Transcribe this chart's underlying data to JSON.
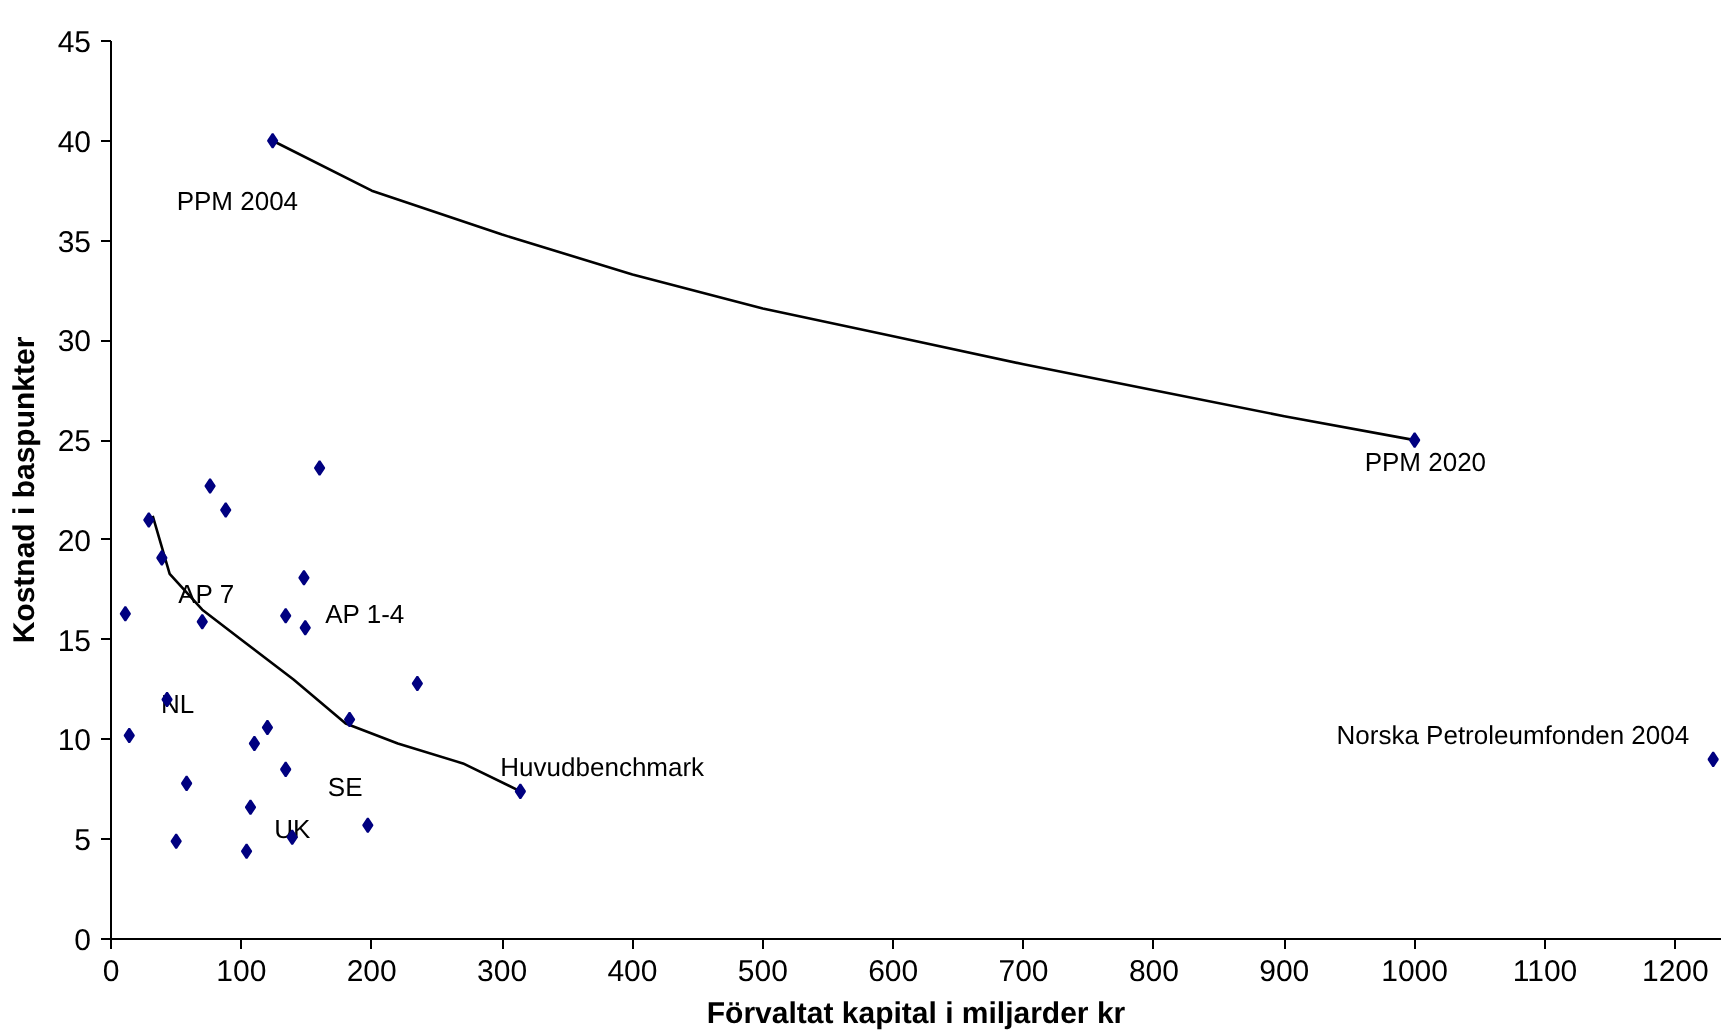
{
  "chart_data": {
    "type": "scatter",
    "xlabel": "Förvaltat kapital i miljarder kr",
    "ylabel": "Kostnad i baspunkter",
    "xlim": [
      0,
      1235
    ],
    "ylim": [
      0,
      45
    ],
    "xticks": [
      0,
      100,
      200,
      300,
      400,
      500,
      600,
      700,
      800,
      900,
      1000,
      1100,
      1200
    ],
    "yticks": [
      0,
      5,
      10,
      15,
      20,
      25,
      30,
      35,
      40,
      45
    ],
    "grid": false,
    "series": [
      {
        "type": "line",
        "color": "#000000",
        "marker": "none",
        "line_style": "solid",
        "x": [
          124,
          200,
          300,
          400,
          500,
          600,
          700,
          800,
          900,
          1000
        ],
        "values": [
          40,
          37.5,
          35.3,
          33.3,
          31.6,
          30.2,
          28.8,
          27.5,
          26.2,
          25
        ]
      },
      {
        "type": "line",
        "color": "#000000",
        "marker": "none",
        "line_style": "solid",
        "x": [
          32,
          45,
          70,
          100,
          140,
          180,
          220,
          270,
          314
        ],
        "values": [
          21.2,
          18.3,
          16.5,
          15,
          13,
          10.8,
          9.8,
          8.8,
          7.4
        ]
      },
      {
        "type": "scatter",
        "color": "#000080",
        "marker": "diamond",
        "x": [
          11,
          14,
          29,
          39,
          43,
          50,
          58,
          70,
          76,
          88,
          104,
          107,
          110,
          120,
          124,
          134,
          134,
          139,
          148,
          149,
          160,
          183,
          197,
          235,
          314,
          1000,
          1229
        ],
        "values": [
          16.3,
          10.2,
          21.0,
          19.1,
          12.0,
          4.9,
          7.8,
          15.9,
          22.7,
          21.5,
          4.4,
          6.6,
          9.8,
          10.6,
          40.0,
          16.2,
          8.5,
          5.1,
          18.1,
          15.6,
          23.6,
          11.0,
          5.7,
          12.8,
          7.4,
          25.0,
          9.0
        ]
      }
    ],
    "annotations": [
      {
        "text": "PPM 2004",
        "x": 124,
        "y": 40.0
      },
      {
        "text": "PPM  2020",
        "x": 1000,
        "y": 25.0
      },
      {
        "text": "AP 7",
        "x": 70,
        "y": 15.9
      },
      {
        "text": "AP 1-4",
        "x": 149,
        "y": 15.6
      },
      {
        "text": "NL",
        "x": 43,
        "y": 12.0
      },
      {
        "text": "SE",
        "x": 197,
        "y": 5.7
      },
      {
        "text": "UK",
        "x": 139,
        "y": 5.1
      },
      {
        "text": "Huvudbenchmark",
        "x": 314,
        "y": 7.4
      },
      {
        "text": "Norska Petroleumfonden 2004",
        "x": 1229,
        "y": 9.0
      }
    ]
  }
}
